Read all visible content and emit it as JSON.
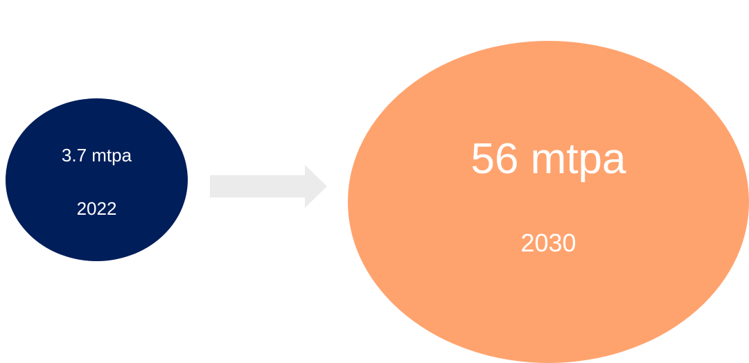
{
  "from": {
    "value": "3.7 mtpa",
    "year": "2022",
    "color": "#001E5A"
  },
  "to": {
    "value": "56 mtpa",
    "year": "2030",
    "color": "#FFA36E"
  },
  "arrow": {
    "icon": "arrow-right-icon",
    "color": "#EBEBEB"
  }
}
